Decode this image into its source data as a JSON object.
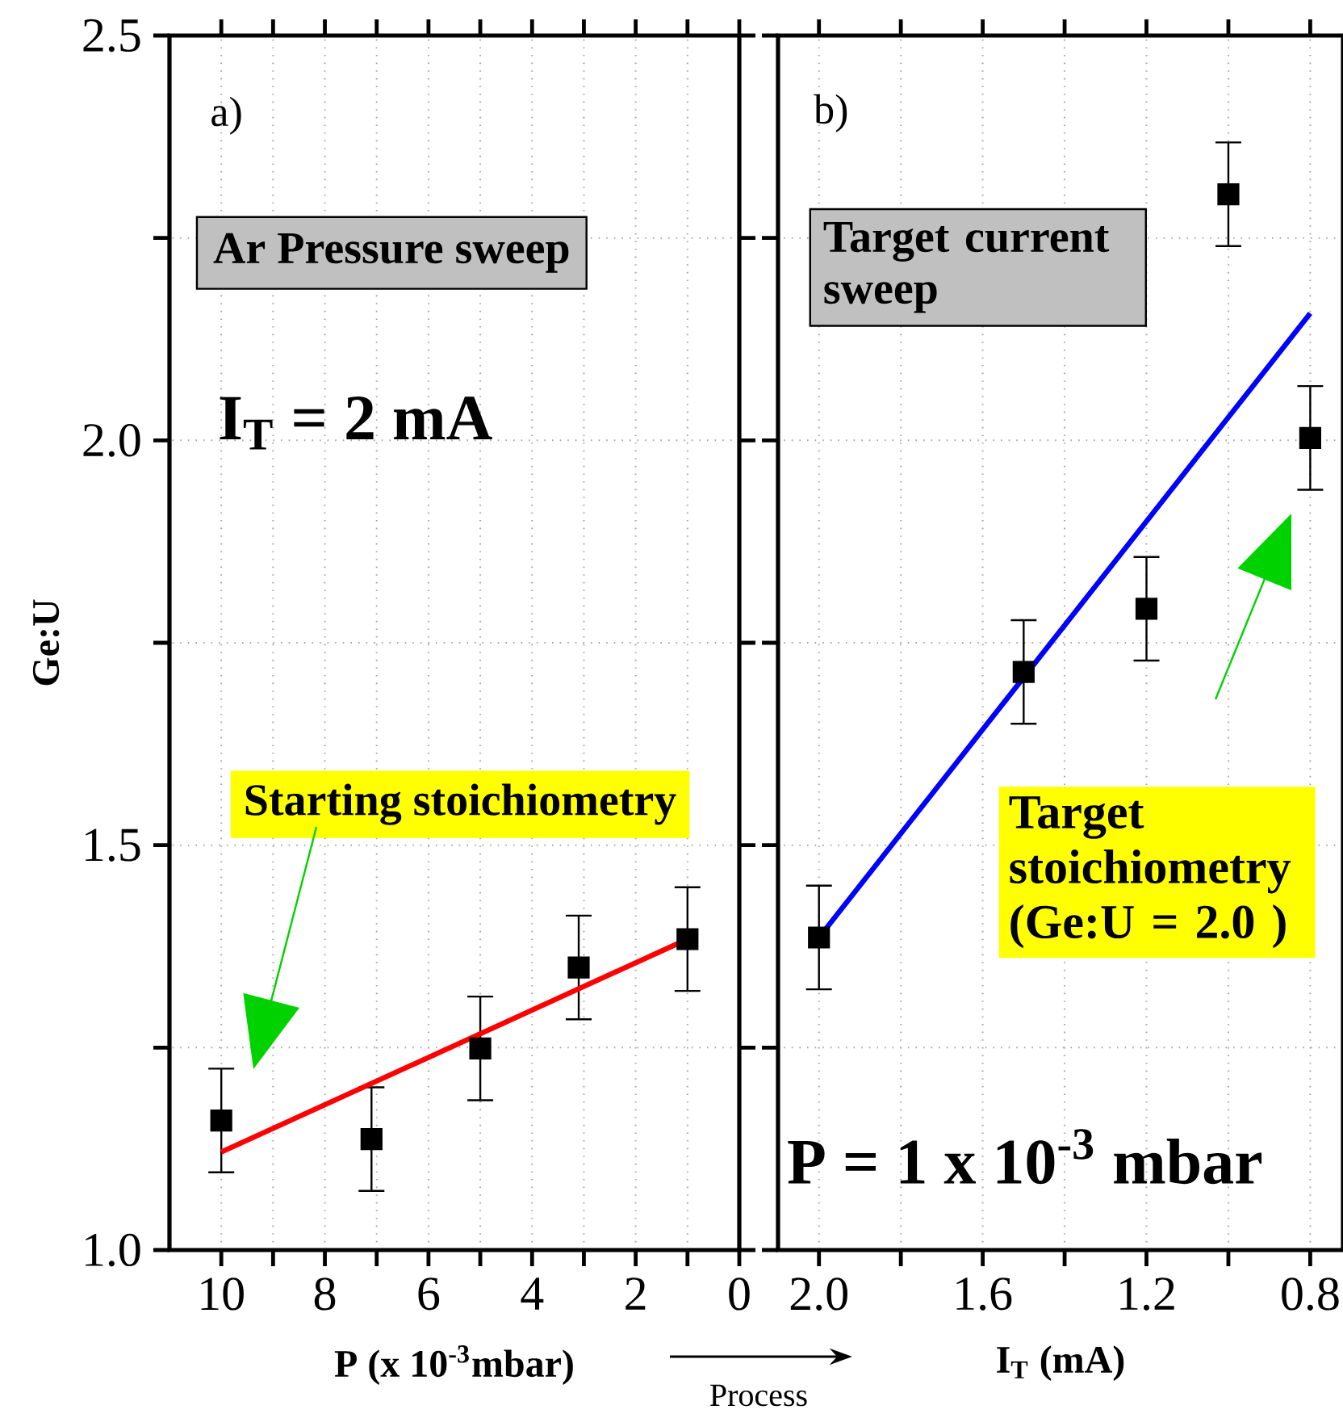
{
  "chart_data": [
    {
      "type": "scatter",
      "xlabel": "P (x 10$^{-3}$mbar)",
      "ylabel": "Ge:U",
      "xlim": [
        11,
        0
      ],
      "ylim": [
        1.0,
        2.5
      ],
      "xticks": [
        10,
        {
          "value": 9,
          "label": null
        },
        8,
        {
          "value": 7,
          "label": null
        },
        6,
        {
          "value": 5,
          "label": null
        },
        4,
        {
          "value": 3,
          "label": null
        },
        2,
        {
          "value": 1,
          "label": null
        },
        0
      ],
      "yticks": [
        {
          "value": 1.0,
          "label": "1.0"
        },
        {
          "value": 1.25,
          "label": null
        },
        1.5,
        {
          "value": 1.75,
          "label": null
        },
        {
          "value": 2.0,
          "label": "2.0"
        },
        {
          "value": 2.25,
          "label": null
        },
        2.5
      ],
      "grid": true,
      "marker": "square",
      "series": [
        {
          "color": "#000000",
          "x": [
            10,
            7.1,
            5,
            3.1,
            1
          ],
          "values": [
            1.16,
            1.137,
            1.249,
            1.349,
            1.384
          ],
          "errors": [
            0.064,
            0.064,
            0.064,
            0.064,
            0.064
          ]
        },
        {
          "type": "line",
          "color": "#ff0000",
          "marker": "none",
          "x": [
            10,
            1
          ],
          "values": [
            1.121,
            1.384
          ]
        }
      ],
      "annotations": [
        "a)",
        "Ar Pressure sweep",
        "I$_{T}$ = 2 mA",
        "Starting stoichiometry",
        "Process"
      ]
    },
    {
      "type": "scatter",
      "xlabel": "I$_{T}$ (mA)",
      "xlim": [
        2.1,
        0.72
      ],
      "ylim": [
        1.0,
        2.5
      ],
      "xticks": [
        {
          "value": 2.0,
          "label": "2.0"
        },
        {
          "value": 1.8,
          "label": null
        },
        1.6,
        {
          "value": 1.4,
          "label": null
        },
        1.2,
        {
          "value": 1.0,
          "label": null
        },
        0.8
      ],
      "yticks": [
        1.0,
        1.25,
        1.5,
        1.75,
        2.0,
        2.25,
        2.5
      ],
      "tick_labels": "x",
      "grid": true,
      "marker": "square",
      "series": [
        {
          "color": "#000000",
          "x": [
            2.0,
            1.5,
            1.2,
            1.0,
            0.8
          ],
          "values": [
            1.386,
            1.714,
            1.792,
            2.304,
            2.003
          ],
          "errors": [
            0.064,
            0.064,
            0.064,
            0.064,
            0.064
          ]
        },
        {
          "type": "line",
          "color": "#0000ff",
          "marker": "none",
          "x": [
            2.0,
            0.8
          ],
          "values": [
            1.386,
            2.157
          ]
        }
      ],
      "annotations": [
        "b)",
        "Target current sweep",
        "Target stoichiometry (Ge:U = 2.0 )",
        "P = 1 x 10$^{-3}$ mbar"
      ]
    }
  ]
}
